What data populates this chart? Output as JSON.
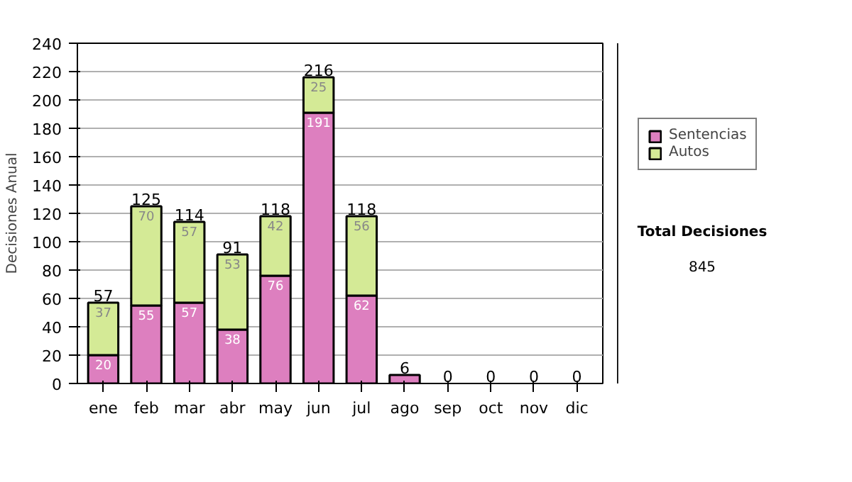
{
  "chart_data": {
    "type": "bar",
    "stacked": true,
    "categories": [
      "ene",
      "feb",
      "mar",
      "abr",
      "may",
      "jun",
      "jul",
      "ago",
      "sep",
      "oct",
      "nov",
      "dic"
    ],
    "ylabel": "Decisiones Anual",
    "series": [
      {
        "name": "Sentencias",
        "color": "#dd7fbf",
        "values": [
          20,
          55,
          57,
          38,
          76,
          191,
          62,
          6,
          0,
          0,
          0,
          0
        ],
        "value_labels": [
          "20",
          "55",
          "57",
          "38",
          "76",
          "191",
          "62",
          null,
          null,
          null,
          null,
          null
        ]
      },
      {
        "name": "Autos",
        "color": "#d4ea96",
        "values": [
          37,
          70,
          57,
          53,
          42,
          25,
          56,
          0,
          0,
          0,
          0,
          0
        ],
        "value_labels": [
          "37",
          "70",
          "57",
          "53",
          "42",
          "25",
          "56",
          null,
          null,
          null,
          null,
          null
        ]
      }
    ],
    "totals": [
      "57",
      "125",
      "114",
      "91",
      "118",
      "216",
      "118",
      "6",
      "0",
      "0",
      "0",
      "0"
    ],
    "ylim": [
      0,
      240
    ],
    "yticks": [
      0,
      20,
      40,
      60,
      80,
      100,
      120,
      140,
      160,
      180,
      200,
      220,
      240
    ],
    "grid": "y",
    "legend": "right",
    "annotations": [
      "Total Decisiones",
      "845"
    ]
  }
}
